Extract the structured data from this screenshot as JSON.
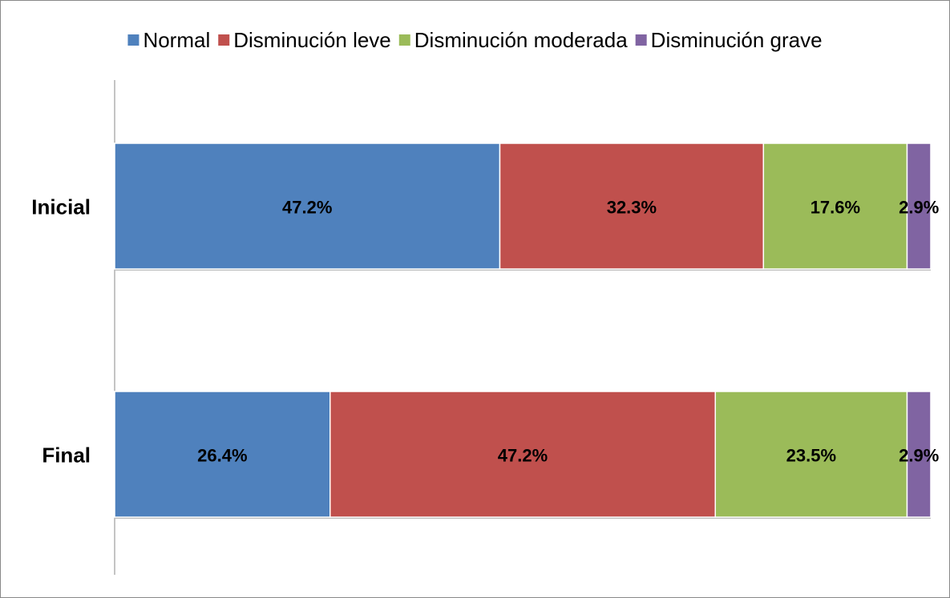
{
  "chart_data": {
    "type": "stacked-bar-horizontal",
    "categories": [
      "Inicial",
      "Final"
    ],
    "series": [
      {
        "name": "Normal",
        "color": "#4f81bd",
        "values": [
          47.2,
          26.4
        ],
        "value_labels": [
          "47.2%",
          "26.4%"
        ]
      },
      {
        "name": "Disminución leve",
        "color": "#c0504d",
        "values": [
          32.3,
          47.2
        ],
        "value_labels": [
          "32.3%",
          "47.2%"
        ]
      },
      {
        "name": "Disminución moderada",
        "color": "#9bbb59",
        "values": [
          17.6,
          23.5
        ],
        "value_labels": [
          "17.6%",
          "23.5%"
        ]
      },
      {
        "name": "Disminución grave",
        "color": "#8064a2",
        "values": [
          2.9,
          2.9
        ],
        "value_labels": [
          "2.9%",
          "2.9%"
        ]
      }
    ],
    "legend": "top"
  }
}
